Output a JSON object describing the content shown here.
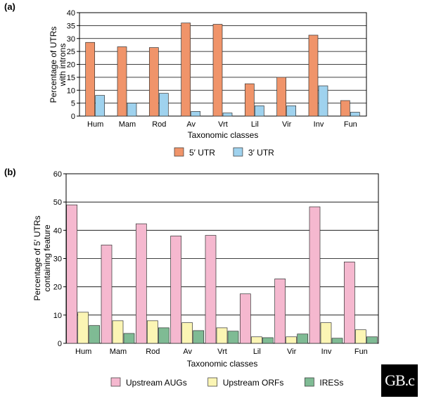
{
  "chart_data": [
    {
      "panel": "(a)",
      "type": "bar",
      "categories": [
        "Hum",
        "Mam",
        "Rod",
        "Av",
        "Vrt",
        "Lil",
        "Vir",
        "Inv",
        "Fun"
      ],
      "series": [
        {
          "name": "5′ UTR",
          "color": "#f0946a",
          "values": [
            28.5,
            26.8,
            26.5,
            36,
            35.5,
            12.5,
            15,
            31.3,
            6
          ]
        },
        {
          "name": "3′ UTR",
          "color": "#9fd2ee",
          "values": [
            8,
            5,
            8.8,
            1.8,
            1.2,
            4,
            4,
            11.7,
            1.5
          ]
        }
      ],
      "title": "",
      "xlabel": "Taxonomic classes",
      "ylabel": "Percentage of UTRs with introns",
      "ylabel_lines": [
        "Percentage of UTRs",
        "with introns"
      ],
      "ylim": [
        0,
        40
      ],
      "yticks": [
        0,
        5,
        10,
        15,
        20,
        25,
        30,
        35,
        40
      ],
      "grid": true
    },
    {
      "panel": "(b)",
      "type": "bar",
      "categories": [
        "Hum",
        "Mam",
        "Rod",
        "Av",
        "Vrt",
        "Lil",
        "Vir",
        "Inv",
        "Fun"
      ],
      "series": [
        {
          "name": "Upstream AUGs",
          "color": "#f5b8cf",
          "values": [
            49,
            34.8,
            42.3,
            38,
            38.2,
            17.5,
            22.8,
            48.3,
            28.8
          ]
        },
        {
          "name": "Upstream ORFs",
          "color": "#fbf5b4",
          "values": [
            11,
            8,
            8,
            7.3,
            5.5,
            2.3,
            2.3,
            7.3,
            4.8
          ]
        },
        {
          "name": "IRESs",
          "color": "#7fbb94",
          "values": [
            6.3,
            3.5,
            5.5,
            4.5,
            4.3,
            2,
            3.3,
            1.8,
            2.3
          ]
        }
      ],
      "title": "",
      "xlabel": "Taxonomic classes",
      "ylabel": "Percentage of 5′ UTRs containing feature",
      "ylabel_lines": [
        "Percentage of 5′ UTRs",
        "containing feature"
      ],
      "ylim": [
        0,
        60
      ],
      "yticks": [
        0,
        10,
        20,
        30,
        40,
        50,
        60
      ],
      "grid": true
    }
  ],
  "logo": {
    "text": "GB.c"
  }
}
